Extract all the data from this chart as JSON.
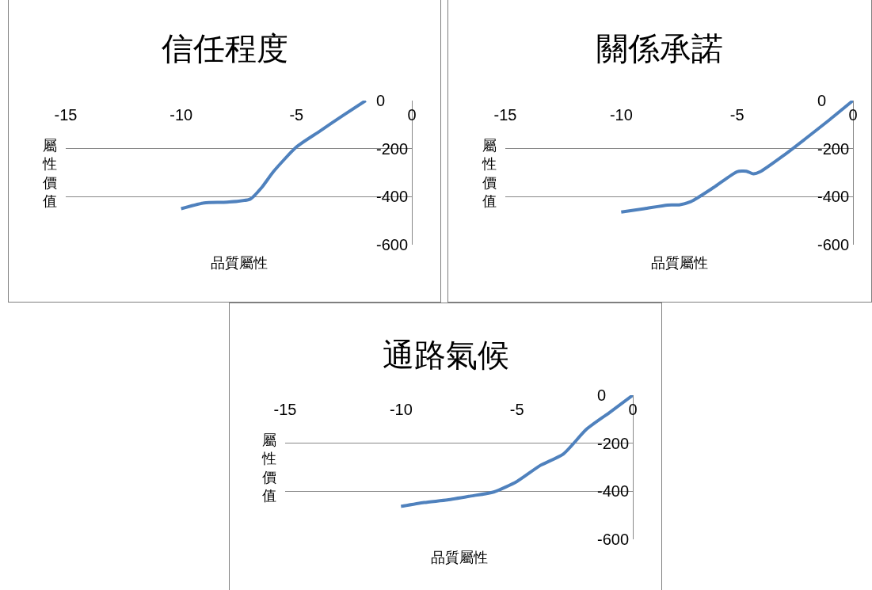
{
  "chart_data": [
    {
      "type": "line",
      "title": "信任程度",
      "xlabel": "品質屬性",
      "ylabel": "屬性價值",
      "xlim": [
        -15,
        0
      ],
      "xticks": [
        -15,
        -10,
        -5,
        0
      ],
      "ylim": [
        -600,
        0
      ],
      "yticks": [
        -600,
        -400,
        -200,
        0
      ],
      "grid": "y",
      "x": [
        -10,
        -9,
        -8,
        -7,
        -6.5,
        -6,
        -5,
        -4,
        -3,
        -2
      ],
      "series": [
        {
          "color": "#4f81bd",
          "values": [
            -450,
            -426,
            -423,
            -410,
            -361,
            -296,
            -193,
            -128,
            -63,
            0
          ]
        }
      ]
    },
    {
      "type": "line",
      "title": "關係承諾",
      "xlabel": "品質屬性",
      "ylabel": "屬性價值",
      "xlim": [
        -15,
        0
      ],
      "xticks": [
        -15,
        -10,
        -5,
        0
      ],
      "ylim": [
        -600,
        0
      ],
      "yticks": [
        -600,
        -400,
        -200,
        0
      ],
      "grid": "y",
      "x": [
        -10,
        -9,
        -8,
        -7.5,
        -7,
        -6,
        -5,
        -4.6,
        -4.3,
        -4,
        -3,
        -2,
        -1,
        0
      ],
      "series": [
        {
          "color": "#4f81bd",
          "values": [
            -464,
            -450,
            -435,
            -434,
            -421,
            -361,
            -296,
            -294,
            -305,
            -296,
            -229,
            -155,
            -79,
            0
          ]
        }
      ]
    },
    {
      "type": "line",
      "title": "通路氣候",
      "xlabel": "品質屬性",
      "ylabel": "屬性價值",
      "xlim": [
        -15,
        0
      ],
      "xticks": [
        -15,
        -10,
        -5,
        0
      ],
      "ylim": [
        -600,
        0
      ],
      "yticks": [
        -600,
        -400,
        -200,
        0
      ],
      "grid": "y",
      "x": [
        -10,
        -9,
        -8,
        -7,
        -6,
        -5,
        -4,
        -3,
        -2,
        -1,
        0
      ],
      "series": [
        {
          "color": "#4f81bd",
          "values": [
            -463,
            -447,
            -436,
            -420,
            -403,
            -359,
            -293,
            -245,
            -142,
            -72,
            0
          ]
        }
      ]
    }
  ]
}
